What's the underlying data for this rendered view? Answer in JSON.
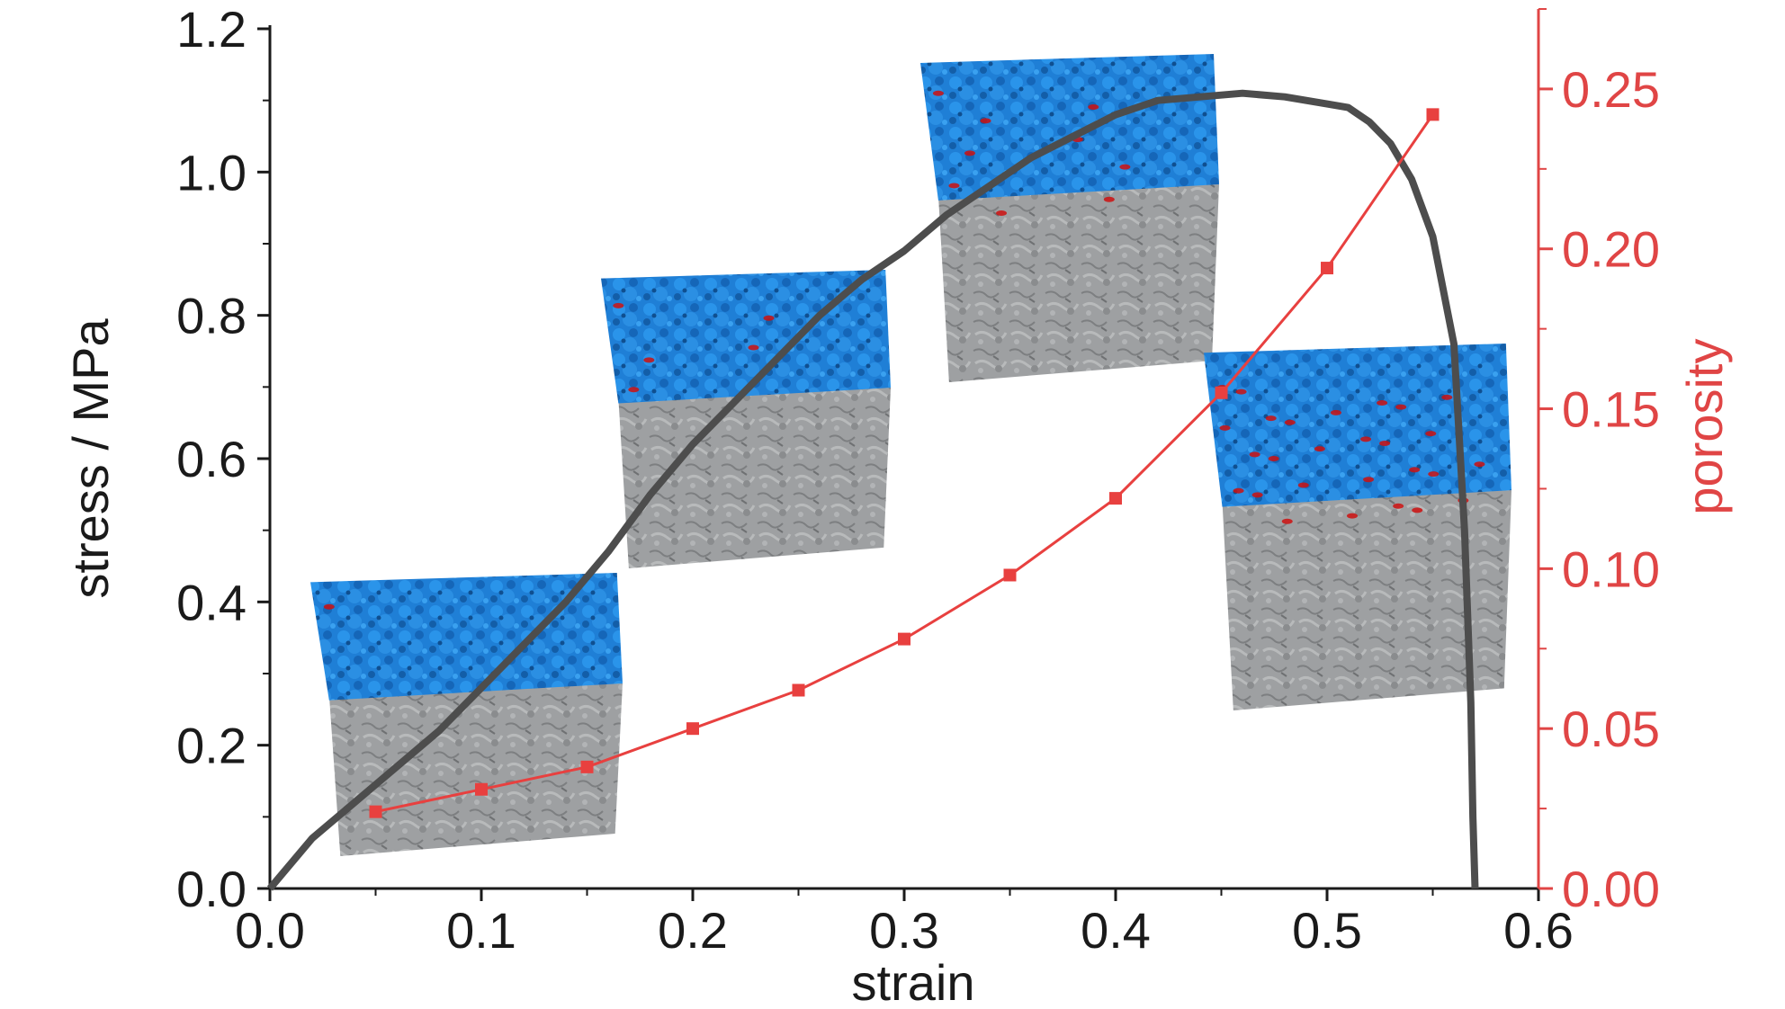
{
  "chart_data": {
    "type": "line",
    "title": "",
    "xlabel": "strain",
    "ylabel": "stress / MPa",
    "ylabel_right": "porosity",
    "xlim": [
      0.0,
      0.6
    ],
    "ylim": [
      0.0,
      1.2
    ],
    "ylim_right": [
      0.0,
      0.275
    ],
    "x_ticks": [
      "0.0",
      "0.1",
      "0.2",
      "0.3",
      "0.4",
      "0.5",
      "0.6"
    ],
    "y_ticks": [
      "0.0",
      "0.2",
      "0.4",
      "0.6",
      "0.8",
      "1.0",
      "1.2"
    ],
    "y_ticks_right": [
      "0.00",
      "0.05",
      "0.10",
      "0.15",
      "0.20",
      "0.25"
    ],
    "grid": false,
    "colors": {
      "stress": "#4d4d4d",
      "porosity": "#e8403f",
      "right_axis": "#e04545",
      "cube_top": "#1f7fd6",
      "cube_bottom": "#9ea0a2",
      "pore": "#cc1111"
    },
    "series": [
      {
        "axis": "left",
        "x": [
          0.0,
          0.02,
          0.04,
          0.06,
          0.08,
          0.1,
          0.12,
          0.14,
          0.16,
          0.18,
          0.2,
          0.22,
          0.24,
          0.26,
          0.28,
          0.3,
          0.32,
          0.34,
          0.36,
          0.38,
          0.4,
          0.42,
          0.44,
          0.46,
          0.48,
          0.5,
          0.51,
          0.52,
          0.53,
          0.54,
          0.55,
          0.56,
          0.565,
          0.568,
          0.569,
          0.57
        ],
        "y": [
          0.0,
          0.07,
          0.12,
          0.17,
          0.22,
          0.28,
          0.34,
          0.4,
          0.47,
          0.55,
          0.62,
          0.68,
          0.74,
          0.8,
          0.85,
          0.89,
          0.94,
          0.98,
          1.02,
          1.05,
          1.08,
          1.1,
          1.105,
          1.11,
          1.105,
          1.095,
          1.09,
          1.07,
          1.04,
          0.99,
          0.91,
          0.76,
          0.5,
          0.26,
          0.1,
          0.0
        ]
      },
      {
        "axis": "right",
        "x": [
          0.05,
          0.1,
          0.15,
          0.2,
          0.25,
          0.3,
          0.35,
          0.4,
          0.45,
          0.5,
          0.55
        ],
        "y": [
          0.024,
          0.031,
          0.038,
          0.05,
          0.062,
          0.078,
          0.098,
          0.122,
          0.155,
          0.194,
          0.242
        ]
      }
    ],
    "inset_images": [
      {
        "strain": 0.05,
        "description_icon": "voxel-cube-icon",
        "pore_level": 0.02
      },
      {
        "strain": 0.2,
        "description_icon": "voxel-cube-icon",
        "pore_level": 0.08
      },
      {
        "strain": 0.35,
        "description_icon": "voxel-cube-icon",
        "pore_level": 0.15
      },
      {
        "strain": 0.5,
        "description_icon": "voxel-cube-icon",
        "pore_level": 0.45
      }
    ]
  }
}
